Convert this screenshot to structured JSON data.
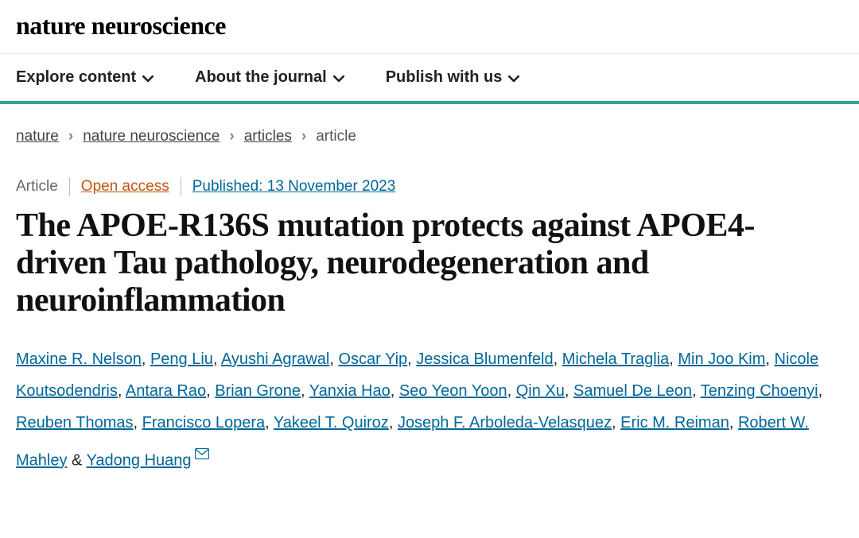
{
  "brand": "nature neuroscience",
  "nav": {
    "items": [
      {
        "label": "Explore content"
      },
      {
        "label": "About the journal"
      },
      {
        "label": "Publish with us"
      }
    ]
  },
  "breadcrumb": {
    "items": [
      {
        "label": "nature",
        "link": true
      },
      {
        "label": "nature neuroscience",
        "link": true
      },
      {
        "label": "articles",
        "link": true
      },
      {
        "label": "article",
        "link": false
      }
    ]
  },
  "meta": {
    "type": "Article",
    "open_access": "Open access",
    "published_prefix": "Published: ",
    "published_date": "13 November 2023"
  },
  "title": "The APOE-R136S mutation protects against APOE4-driven Tau pathology, neurodegeneration and neuroinflammation",
  "authors": [
    "Maxine R. Nelson",
    "Peng Liu",
    "Ayushi Agrawal",
    "Oscar Yip",
    "Jessica Blumenfeld",
    "Michela Traglia",
    "Min Joo Kim",
    "Nicole Koutsodendris",
    "Antara Rao",
    "Brian Grone",
    "Yanxia Hao",
    "Seo Yeon Yoon",
    "Qin Xu",
    "Samuel De Leon",
    "Tenzing Choenyi",
    "Reuben Thomas",
    "Francisco Lopera",
    "Yakeel T. Quiroz",
    "Joseph F. Arboleda-Velasquez",
    "Eric M. Reiman",
    "Robert W. Mahley",
    "Yadong Huang"
  ],
  "corresponding_index": 21,
  "colors": {
    "accent_bar": "#29a79a",
    "link": "#006699",
    "open_access": "#c65313"
  }
}
